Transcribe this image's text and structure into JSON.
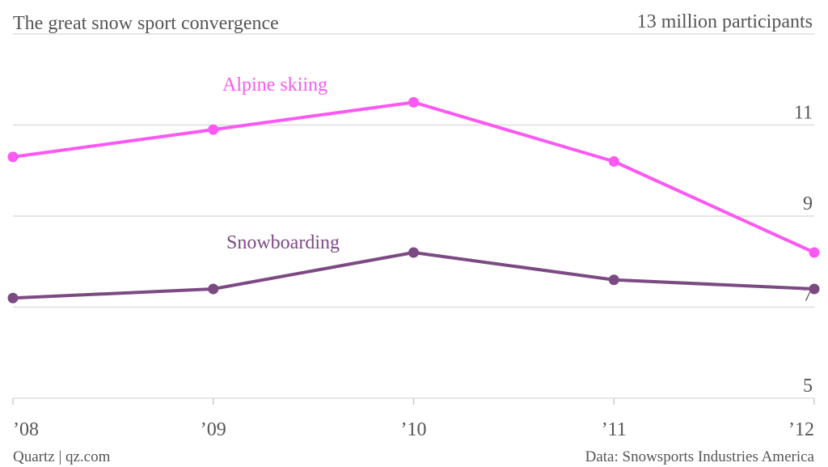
{
  "chart_data": {
    "type": "line",
    "title": "The great snow sport convergence",
    "categories": [
      "’08",
      "’09",
      "’10",
      "’11",
      "’12"
    ],
    "series": [
      {
        "name": "Alpine skiing",
        "color": "#fc58f3",
        "values": [
          10.3,
          10.9,
          11.5,
          10.2,
          8.2
        ]
      },
      {
        "name": "Snowboarding",
        "color": "#7c4a83",
        "values": [
          7.2,
          7.4,
          8.2,
          7.6,
          7.4
        ]
      }
    ],
    "ylim": [
      5,
      13
    ],
    "yticks": [
      5,
      7,
      9,
      11,
      {
        "value": 13,
        "label": "13 million participants"
      }
    ],
    "grid": true,
    "source": "Data: Snowsports Industries America",
    "credit": "Quartz | qz.com"
  }
}
